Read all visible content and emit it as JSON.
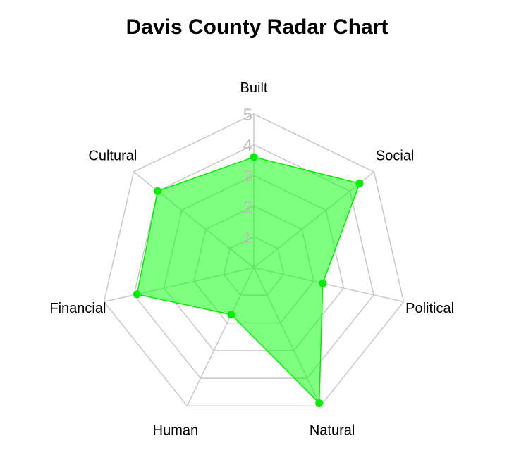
{
  "chart_data": {
    "type": "radar",
    "title": "Davis County Radar Chart",
    "axes": [
      "Built",
      "Social",
      "Political",
      "Natural",
      "Human",
      "Financial",
      "Cultural"
    ],
    "rings": [
      "1",
      "2",
      "3",
      "4",
      "5"
    ],
    "range": [
      0,
      5
    ],
    "series": [
      {
        "values": [
          3.6,
          4.4,
          2.3,
          4.9,
          1.7,
          3.9,
          4.0
        ]
      }
    ],
    "colors": {
      "fill": "#00ff00",
      "fill_opacity": 0.5,
      "stroke": "#00ee00",
      "grid": "#c8c8c8",
      "ring_label": "#bfbfbf"
    },
    "grid": true
  }
}
